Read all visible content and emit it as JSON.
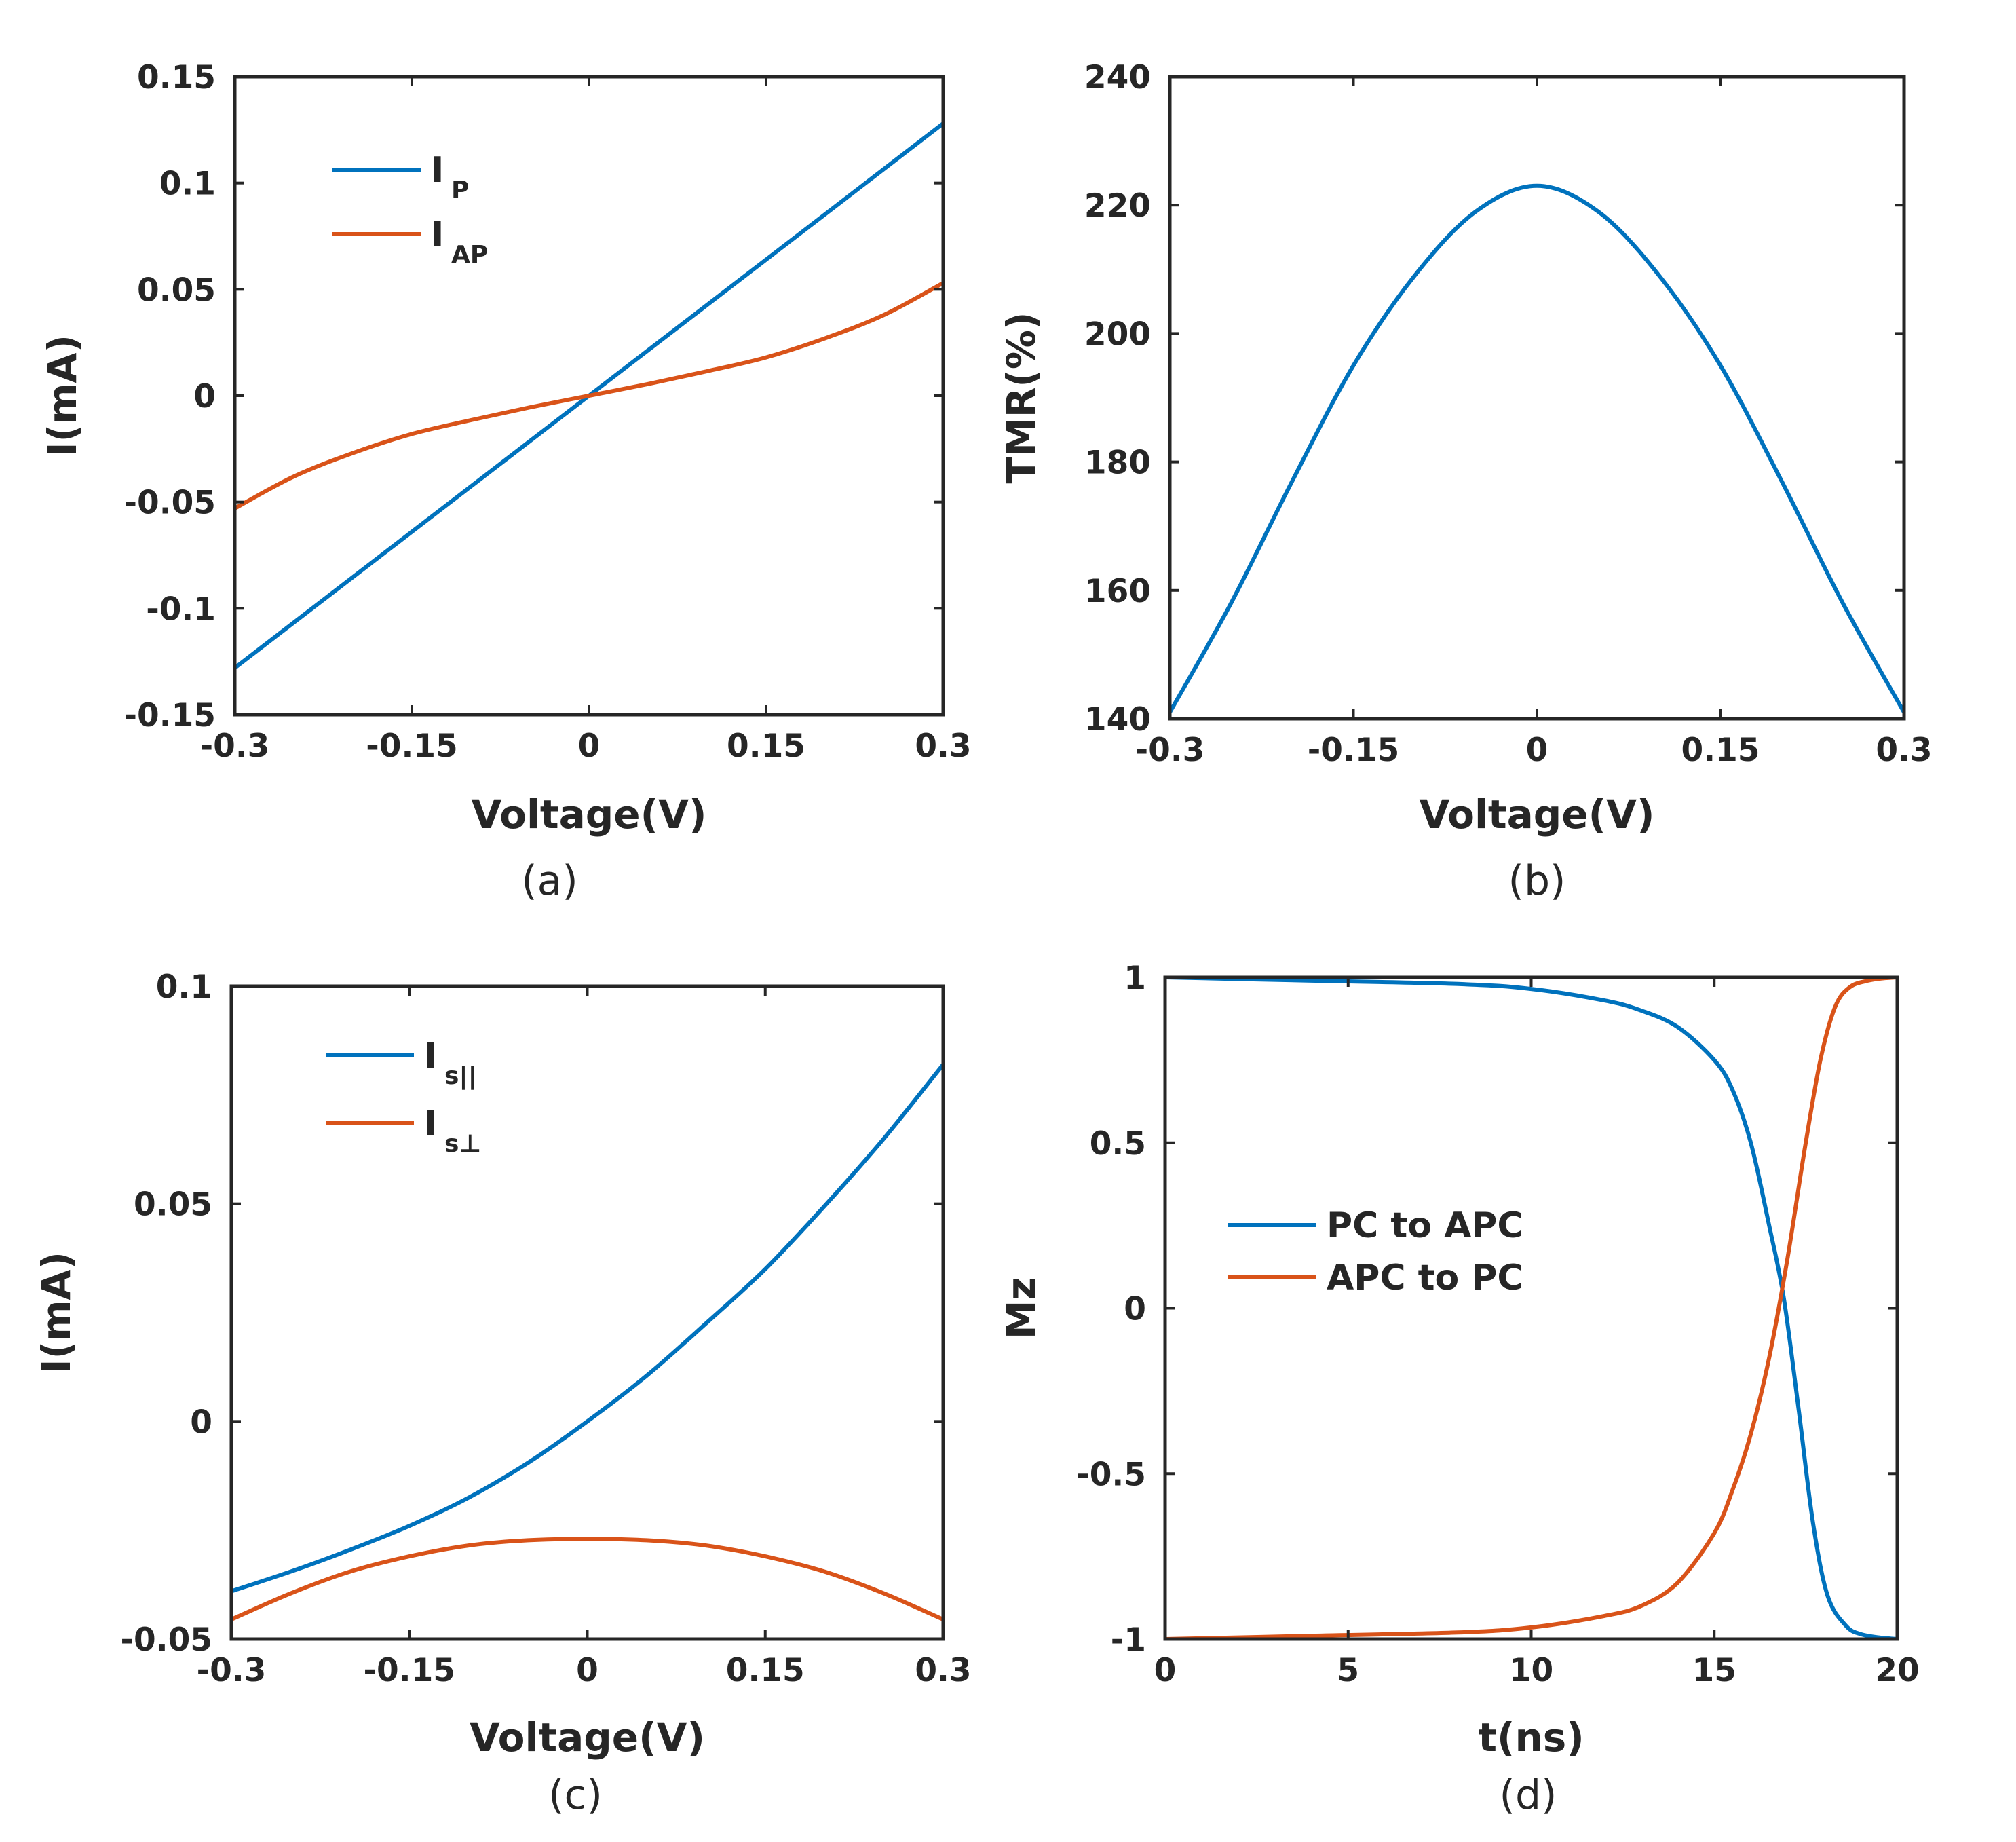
{
  "colors": {
    "blue": "#0072BD",
    "orange": "#D95319",
    "axis": "#262626"
  },
  "chart_data": [
    {
      "id": "a",
      "type": "line",
      "caption": "(a)",
      "xlabel": "Voltage(V)",
      "ylabel": "I(mA)",
      "xlim": [
        -0.3,
        0.3
      ],
      "ylim": [
        -0.15,
        0.15
      ],
      "xticks": [
        -0.3,
        -0.15,
        0,
        0.15,
        0.3
      ],
      "xtick_labels": [
        "-0.3",
        "-0.15",
        "0",
        "0.15",
        "0.3"
      ],
      "yticks": [
        -0.15,
        -0.1,
        -0.05,
        0,
        0.05,
        0.1,
        0.15
      ],
      "ytick_labels": [
        "-0.15",
        "-0.1",
        "-0.05",
        "0",
        "0.05",
        "0.1",
        "0.15"
      ],
      "legend_position": "top-left",
      "series": [
        {
          "name": "I",
          "subscript": "P",
          "color": "blue",
          "x": [
            -0.3,
            -0.15,
            0,
            0.15,
            0.3
          ],
          "y": [
            -0.128,
            -0.064,
            0,
            0.064,
            0.128
          ]
        },
        {
          "name": "I",
          "subscript": "AP",
          "color": "orange",
          "x": [
            -0.3,
            -0.25,
            -0.2,
            -0.15,
            -0.1,
            -0.05,
            0,
            0.05,
            0.1,
            0.15,
            0.2,
            0.25,
            0.3
          ],
          "y": [
            -0.053,
            -0.038,
            -0.027,
            -0.018,
            -0.0115,
            -0.0055,
            0,
            0.0055,
            0.0115,
            0.018,
            0.027,
            0.038,
            0.053
          ]
        }
      ]
    },
    {
      "id": "b",
      "type": "line",
      "caption": "(b)",
      "xlabel": "Voltage(V)",
      "ylabel": "TMR(%)",
      "xlim": [
        -0.3,
        0.3
      ],
      "ylim": [
        140,
        240
      ],
      "xticks": [
        -0.3,
        -0.15,
        0,
        0.15,
        0.3
      ],
      "xtick_labels": [
        "-0.3",
        "-0.15",
        "0",
        "0.15",
        "0.3"
      ],
      "yticks": [
        140,
        160,
        180,
        200,
        220,
        240
      ],
      "ytick_labels": [
        "140",
        "160",
        "180",
        "200",
        "220",
        "240"
      ],
      "series": [
        {
          "name": "TMR",
          "color": "blue",
          "x": [
            -0.3,
            -0.25,
            -0.2,
            -0.15,
            -0.1,
            -0.05,
            0,
            0.05,
            0.1,
            0.15,
            0.2,
            0.25,
            0.3
          ],
          "y": [
            141,
            158,
            177,
            195,
            209,
            219,
            223,
            219,
            209,
            195,
            177,
            158,
            141
          ]
        }
      ]
    },
    {
      "id": "c",
      "type": "line",
      "caption": "(c)",
      "xlabel": "Voltage(V)",
      "ylabel": "I(mA)",
      "xlim": [
        -0.3,
        0.3
      ],
      "ylim": [
        -0.05,
        0.1
      ],
      "xticks": [
        -0.3,
        -0.15,
        0,
        0.15,
        0.3
      ],
      "xtick_labels": [
        "-0.3",
        "-0.15",
        "0",
        "0.15",
        "0.3"
      ],
      "yticks": [
        -0.05,
        0,
        0.05,
        0.1
      ],
      "ytick_labels": [
        "-0.05",
        "0",
        "0.05",
        "0.1"
      ],
      "legend_position": "top-left",
      "series": [
        {
          "name": "I",
          "subscript": "s||",
          "color": "blue",
          "x": [
            -0.3,
            -0.25,
            -0.2,
            -0.15,
            -0.1,
            -0.05,
            0,
            0.05,
            0.1,
            0.15,
            0.2,
            0.25,
            0.3
          ],
          "y": [
            -0.039,
            -0.0345,
            -0.0295,
            -0.024,
            -0.0175,
            -0.0095,
            0,
            0.0105,
            0.0225,
            0.035,
            0.0495,
            0.065,
            0.082
          ]
        },
        {
          "name": "I",
          "subscript": "s⊥",
          "color": "orange",
          "x": [
            -0.3,
            -0.25,
            -0.2,
            -0.15,
            -0.1,
            -0.05,
            0,
            0.05,
            0.1,
            0.15,
            0.2,
            0.25,
            0.3
          ],
          "y": [
            -0.0455,
            -0.0395,
            -0.0345,
            -0.031,
            -0.0285,
            -0.0273,
            -0.027,
            -0.0273,
            -0.0285,
            -0.031,
            -0.0345,
            -0.0395,
            -0.0455
          ]
        }
      ]
    },
    {
      "id": "d",
      "type": "line",
      "caption": "(d)",
      "xlabel": "t(ns)",
      "ylabel": "Mz",
      "xlim": [
        0,
        20
      ],
      "ylim": [
        -1,
        1
      ],
      "xticks": [
        0,
        5,
        10,
        15,
        20
      ],
      "xtick_labels": [
        "0",
        "5",
        "10",
        "15",
        "20"
      ],
      "yticks": [
        -1,
        -0.5,
        0,
        0.5,
        1
      ],
      "ytick_labels": [
        "-1",
        "-0.5",
        "0",
        "0.5",
        "1"
      ],
      "legend_position": "center-left",
      "series": [
        {
          "name": "PC to APC",
          "color": "blue",
          "x": [
            0,
            4,
            8,
            10,
            12,
            13,
            14,
            15,
            15.5,
            16,
            16.5,
            16.9,
            17.3,
            17.7,
            18.1,
            18.6,
            19,
            19.5,
            20
          ],
          "y": [
            1,
            0.99,
            0.98,
            0.965,
            0.93,
            0.9,
            0.85,
            0.75,
            0.66,
            0.5,
            0.25,
            0.03,
            -0.3,
            -0.65,
            -0.87,
            -0.96,
            -0.985,
            -0.995,
            -1
          ]
        },
        {
          "name": "APC to PC",
          "color": "orange",
          "x": [
            0,
            4,
            8,
            10,
            12,
            13,
            14,
            15,
            15.5,
            16,
            16.5,
            17,
            17.5,
            17.9,
            18.3,
            18.7,
            19.2,
            19.6,
            20
          ],
          "y": [
            -1,
            -0.99,
            -0.98,
            -0.965,
            -0.93,
            -0.9,
            -0.83,
            -0.68,
            -0.55,
            -0.38,
            -0.15,
            0.15,
            0.5,
            0.75,
            0.91,
            0.97,
            0.99,
            0.997,
            1
          ]
        }
      ]
    }
  ]
}
